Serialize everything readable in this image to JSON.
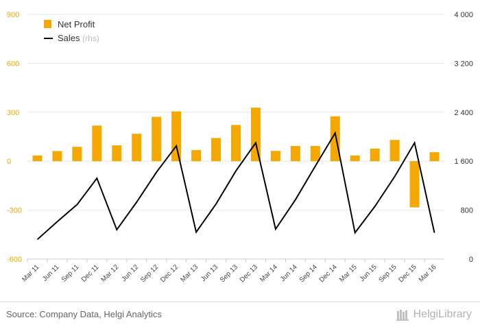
{
  "chart_data": {
    "type": "bar+line",
    "categories": [
      "Mar 11",
      "Jun 11",
      "Sep 11",
      "Dec 11",
      "Mar 12",
      "Jun 12",
      "Sep 12",
      "Dec 12",
      "Mar 13",
      "Jun 13",
      "Sep 13",
      "Dec 13",
      "Mar 14",
      "Jun 14",
      "Sep 14",
      "Dec 14",
      "Mar 15",
      "Jun 15",
      "Sep 15",
      "Dec 15",
      "Mar 16"
    ],
    "series": [
      {
        "name": "Net Profit",
        "type": "bar",
        "axis": "left",
        "color": "#f5a800",
        "values": [
          35,
          62,
          88,
          218,
          97,
          168,
          272,
          305,
          68,
          142,
          222,
          328,
          63,
          93,
          93,
          275,
          35,
          77,
          130,
          -283,
          55
        ]
      },
      {
        "name": "Sales",
        "axis_label": "(rhs)",
        "type": "line",
        "axis": "right",
        "color": "#000000",
        "values": [
          320,
          610,
          890,
          1320,
          480,
          930,
          1420,
          1850,
          440,
          900,
          1440,
          1900,
          490,
          970,
          1520,
          2060,
          430,
          860,
          1350,
          1900,
          430
        ]
      }
    ],
    "y_left": {
      "min": -600,
      "max": 900,
      "ticks": [
        900,
        600,
        300,
        0,
        -300,
        -600
      ]
    },
    "y_right": {
      "min": 0,
      "max": 4000,
      "ticks": [
        "4 000",
        "3 200",
        "2 400",
        "1 600",
        "800",
        "0"
      ]
    },
    "grid": true,
    "legend_position": "top-left"
  },
  "legend": {
    "net_profit": "Net Profit",
    "sales": "Sales",
    "rhs": "(rhs)"
  },
  "footer": {
    "source": "Source: Company Data, Helgi Analytics",
    "brand": "HelgiLibrary"
  },
  "colors": {
    "bar": "#f5a800",
    "line": "#000000",
    "left_axis_text": "#f5a800",
    "grid": "#e6e6e6"
  }
}
